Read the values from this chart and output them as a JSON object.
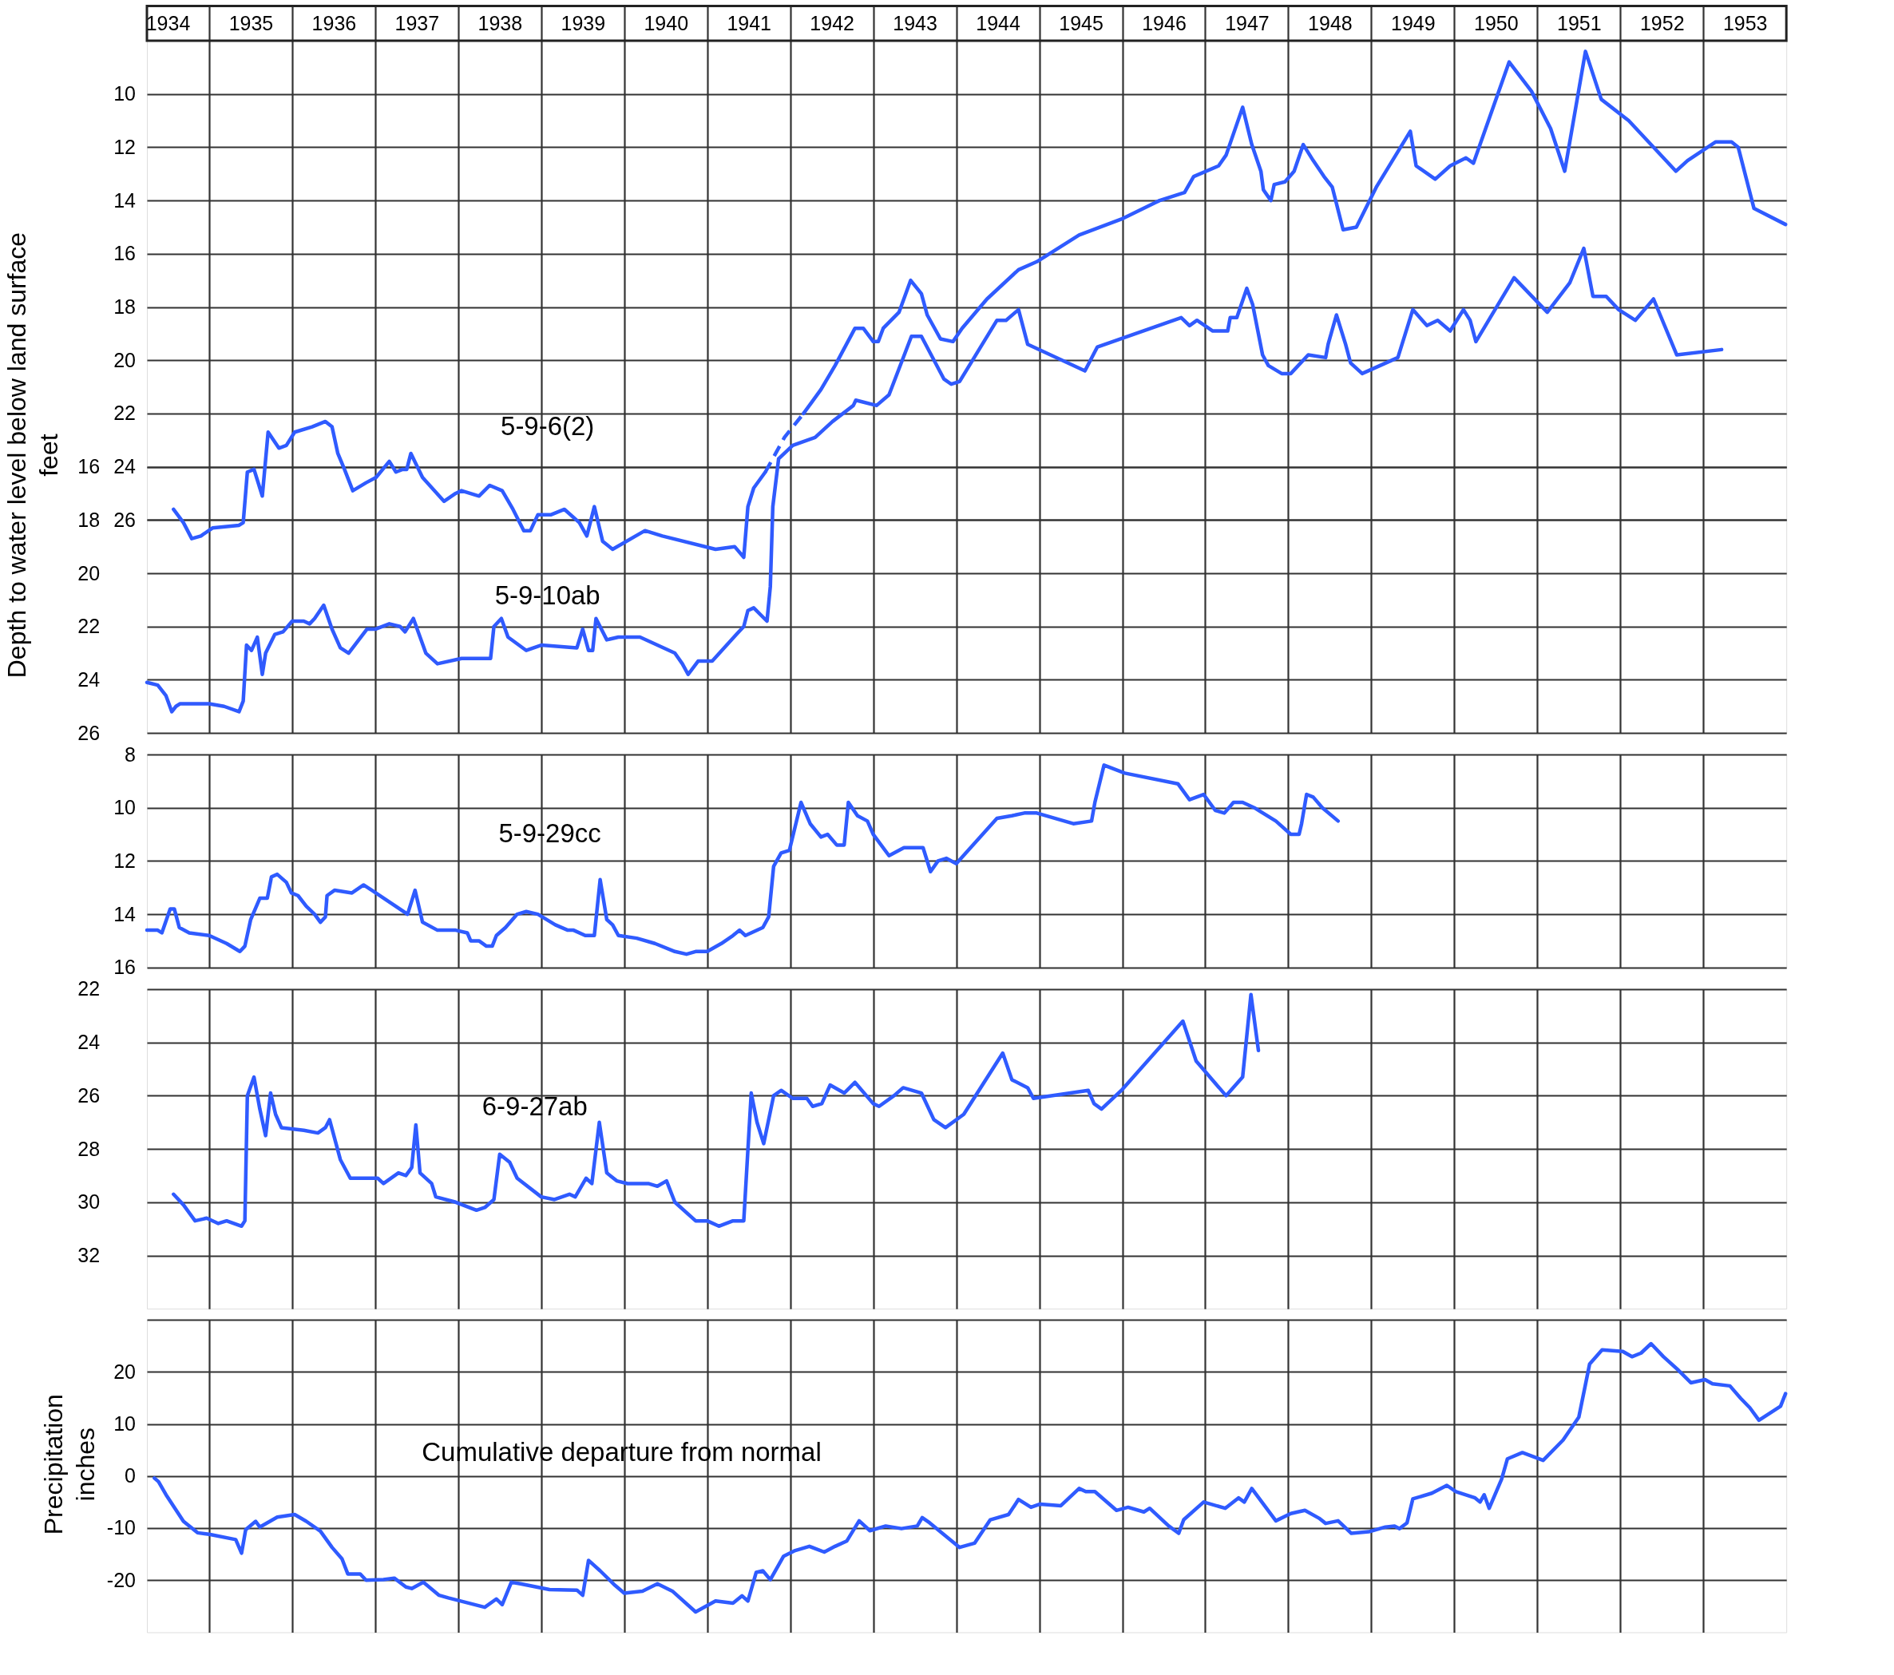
{
  "chart_data": [
    {
      "type": "line",
      "ylabel": "Depth to water level below land surface\nfeet",
      "grid": true,
      "line_style": "solid",
      "xlim": [
        1934.25,
        1954
      ],
      "xticks": [
        {
          "value": 1934.5,
          "label": "1934"
        },
        {
          "value": 1935,
          "label": null
        },
        {
          "value": 1935.5,
          "label": "1935"
        },
        {
          "value": 1936,
          "label": null
        },
        {
          "value": 1936.5,
          "label": "1936"
        },
        {
          "value": 1937,
          "label": null
        },
        {
          "value": 1937.5,
          "label": "1937"
        },
        {
          "value": 1938,
          "label": null
        },
        {
          "value": 1938.5,
          "label": "1938"
        },
        {
          "value": 1939,
          "label": null
        },
        {
          "value": 1939.5,
          "label": "1939"
        },
        {
          "value": 1940,
          "label": null
        },
        {
          "value": 1940.5,
          "label": "1940"
        },
        {
          "value": 1941,
          "label": null
        },
        {
          "value": 1941.5,
          "label": "1941"
        },
        {
          "value": 1942,
          "label": null
        },
        {
          "value": 1942.5,
          "label": "1942"
        },
        {
          "value": 1943,
          "label": null
        },
        {
          "value": 1943.5,
          "label": "1943"
        },
        {
          "value": 1944,
          "label": null
        },
        {
          "value": 1944.5,
          "label": "1944"
        },
        {
          "value": 1945,
          "label": null
        },
        {
          "value": 1945.5,
          "label": "1945"
        },
        {
          "value": 1946,
          "label": null
        },
        {
          "value": 1946.5,
          "label": "1946"
        },
        {
          "value": 1947,
          "label": null
        },
        {
          "value": 1947.5,
          "label": "1947"
        },
        {
          "value": 1948,
          "label": null
        },
        {
          "value": 1948.5,
          "label": "1948"
        },
        {
          "value": 1949,
          "label": null
        },
        {
          "value": 1949.5,
          "label": "1949"
        },
        {
          "value": 1950,
          "label": null
        },
        {
          "value": 1950.5,
          "label": "1950"
        },
        {
          "value": 1951,
          "label": null
        },
        {
          "value": 1951.5,
          "label": "1951"
        },
        {
          "value": 1952,
          "label": null
        },
        {
          "value": 1952.5,
          "label": "1952"
        },
        {
          "value": 1953,
          "label": null
        },
        {
          "value": 1953.5,
          "label": "1953"
        }
      ],
      "y2lim": [
        34,
        8
      ],
      "y2ticks": [
        10,
        12,
        14,
        16,
        18,
        20,
        22,
        24,
        26
      ],
      "ylim": [
        26,
        0
      ],
      "yticks": [
        16,
        18,
        20,
        22,
        24,
        26
      ],
      "series": [
        {
          "name": "5-9-6(2)",
          "color": "#2f5bff",
          "axis": "y2",
          "x": [
            1934.57,
            1934.69,
            1934.79,
            1934.9,
            1935.04,
            1935.36,
            1935.41,
            1935.46,
            1935.54,
            1935.64,
            1935.71,
            1935.84,
            1935.93,
            1936.03,
            1936.24,
            1936.4,
            1936.48,
            1936.55,
            1936.63,
            1936.73,
            1936.89,
            1937.01,
            1937.17,
            1937.25,
            1937.33,
            1937.38,
            1937.43,
            1937.57,
            1937.83,
            1937.97,
            1938.04,
            1938.25,
            1938.38,
            1938.53,
            1938.66,
            1938.79,
            1938.87,
            1938.96,
            1939.12,
            1939.28,
            1939.46,
            1939.55,
            1939.64,
            1939.74,
            1939.86,
            1940.25,
            1940.46,
            1941.1,
            1941.33,
            1941.44,
            1941.49,
            1941.56,
            1941.7,
            1941.93,
            1942.16,
            1942.37,
            1942.54,
            1942.78,
            1942.88,
            1943.0,
            1943.06,
            1943.12,
            1943.31,
            1943.45,
            1943.58,
            1943.65,
            1943.81,
            1943.96,
            1944.07,
            1944.37,
            1944.75,
            1944.97,
            1945.48,
            1945.99,
            1946.45,
            1946.75,
            1946.86,
            1947.16,
            1947.25,
            1947.45,
            1947.56,
            1947.67,
            1947.7,
            1947.79,
            1947.83,
            1947.96,
            1948.07,
            1948.18,
            1948.3,
            1948.43,
            1948.53,
            1948.66,
            1948.82,
            1949.06,
            1949.47,
            1949.54,
            1949.77,
            1949.95,
            1950.14,
            1950.23,
            1950.66,
            1950.93,
            1951.16,
            1951.33,
            1951.58,
            1951.77,
            1952.1,
            1952.67,
            1952.81,
            1953.15,
            1953.34,
            1953.42,
            1953.61,
            1953.99
          ],
          "values": [
            25.6,
            26.1,
            26.7,
            26.6,
            26.3,
            26.2,
            26.1,
            24.2,
            24.1,
            25.1,
            22.7,
            23.3,
            23.2,
            22.7,
            22.5,
            22.3,
            22.5,
            23.5,
            24.1,
            24.9,
            24.6,
            24.4,
            23.8,
            24.2,
            24.1,
            24.1,
            23.5,
            24.4,
            25.3,
            25.0,
            24.9,
            25.1,
            24.7,
            24.9,
            25.6,
            26.4,
            26.4,
            25.8,
            25.8,
            25.6,
            26.1,
            26.6,
            25.5,
            26.8,
            27.1,
            26.4,
            26.6,
            27.1,
            27.0,
            27.4,
            25.5,
            24.8,
            24.2,
            null,
            22.0,
            21.1,
            20.2,
            18.8,
            18.8,
            19.3,
            19.3,
            18.8,
            18.2,
            17.0,
            17.5,
            18.3,
            19.2,
            19.3,
            18.8,
            17.7,
            16.6,
            16.3,
            15.3,
            14.7,
            14.0,
            13.7,
            13.1,
            12.7,
            12.3,
            10.5,
            11.9,
            12.9,
            13.6,
            14.0,
            13.4,
            13.3,
            12.9,
            11.9,
            12.5,
            13.1,
            13.5,
            15.1,
            15.0,
            13.5,
            11.4,
            12.7,
            13.2,
            12.7,
            12.4,
            12.6,
            8.8,
            9.9,
            11.3,
            12.9,
            8.4,
            10.2,
            11.0,
            12.9,
            12.5,
            11.8,
            11.8,
            12.0,
            14.3,
            14.9
          ]
        },
        {
          "color": "#2f5cfe",
          "axis": "y2",
          "line_style": "dashed",
          "x": [
            1941.7,
            1941.93,
            1942.16
          ],
          "values": [
            24.2,
            22.9,
            22.0
          ]
        },
        {
          "name": "5-9-10ab",
          "color": "#305afd",
          "axis": "y",
          "x": [
            1934.25,
            1934.38,
            1934.48,
            1934.55,
            1934.6,
            1934.65,
            1935.0,
            1935.18,
            1935.36,
            1935.41,
            1935.45,
            1935.51,
            1935.58,
            1935.64,
            1935.68,
            1935.79,
            1935.89,
            1936.0,
            1936.14,
            1936.21,
            1936.27,
            1936.38,
            1936.48,
            1936.58,
            1936.68,
            1936.9,
            1937.0,
            1937.17,
            1937.3,
            1937.36,
            1937.46,
            1937.61,
            1937.75,
            1938.04,
            1938.39,
            1938.43,
            1938.52,
            1938.6,
            1938.82,
            1939.0,
            1939.43,
            1939.5,
            1939.57,
            1939.62,
            1939.66,
            1939.79,
            1939.93,
            1940.19,
            1940.61,
            1940.7,
            1940.77,
            1940.89,
            1941.06,
            1941.35,
            1941.44,
            1941.49,
            1941.56,
            1941.72,
            1941.76,
            1941.79,
            1941.86,
            1942.03,
            1942.3,
            1942.51,
            1942.76,
            1942.79,
            1943.04,
            1943.19,
            1943.46,
            1943.58,
            1943.85,
            1943.94,
            1944.04,
            1944.49,
            1944.6,
            1944.75,
            1944.86,
            1945.55,
            1945.7,
            1946.71,
            1946.81,
            1946.9,
            1947.09,
            1947.27,
            1947.3,
            1947.38,
            1947.5,
            1947.57,
            1947.69,
            1947.76,
            1947.92,
            1948.03,
            1948.24,
            1948.45,
            1948.48,
            1948.58,
            1948.69,
            1948.75,
            1948.89,
            1949.32,
            1949.5,
            1949.67,
            1949.8,
            1949.95,
            1950.11,
            1950.19,
            1950.26,
            1950.72,
            1951.12,
            1951.39,
            1951.56,
            1951.67,
            1951.83,
            1951.98,
            1952.18,
            1952.4,
            1952.68,
            1953.22
          ],
          "values": [
            24.1,
            24.2,
            24.6,
            25.2,
            25.0,
            24.9,
            24.9,
            25.0,
            25.2,
            24.8,
            22.7,
            22.9,
            22.4,
            23.8,
            23.0,
            22.3,
            22.2,
            21.8,
            21.8,
            21.9,
            21.7,
            21.2,
            22.1,
            22.8,
            23.0,
            22.1,
            22.1,
            21.9,
            22.0,
            22.2,
            21.7,
            23.0,
            23.4,
            23.2,
            23.2,
            22.0,
            21.7,
            22.4,
            22.9,
            22.7,
            22.8,
            22.1,
            22.9,
            22.9,
            21.7,
            22.5,
            22.4,
            22.4,
            23.0,
            23.4,
            23.8,
            23.3,
            23.3,
            22.3,
            22.0,
            21.4,
            21.3,
            21.8,
            20.5,
            17.5,
            15.7,
            15.2,
            14.9,
            14.3,
            13.7,
            13.5,
            13.7,
            13.3,
            11.1,
            11.1,
            12.7,
            12.9,
            12.8,
            10.5,
            10.5,
            10.1,
            11.4,
            12.4,
            11.5,
            10.4,
            10.7,
            10.5,
            10.9,
            10.9,
            10.4,
            10.4,
            9.3,
            9.9,
            11.8,
            12.2,
            12.5,
            12.5,
            11.8,
            11.9,
            11.4,
            10.3,
            11.4,
            12.1,
            12.5,
            11.9,
            10.1,
            10.7,
            10.5,
            10.9,
            10.1,
            10.5,
            11.3,
            8.9,
            10.2,
            9.1,
            7.8,
            9.6,
            9.6,
            10.1,
            10.5,
            9.7,
            11.8,
            11.6
          ]
        }
      ]
    },
    {
      "type": "line",
      "tick_labels": "y",
      "grid": true,
      "line_style": "solid",
      "xlim": [
        1934.25,
        1954
      ],
      "ylim": [
        16,
        8
      ],
      "yticks": [
        8,
        10,
        12,
        14,
        16
      ],
      "series": [
        {
          "name": "5-9-29cc",
          "color": "#2f5bff",
          "axis": "y",
          "x": [
            1934.25,
            1934.38,
            1934.43,
            1934.53,
            1934.58,
            1934.64,
            1934.76,
            1935.0,
            1935.21,
            1935.37,
            1935.43,
            1935.5,
            1935.61,
            1935.7,
            1935.75,
            1935.82,
            1935.93,
            1935.99,
            1936.07,
            1936.17,
            1936.27,
            1936.34,
            1936.4,
            1936.42,
            1936.51,
            1936.72,
            1936.86,
            1936.96,
            1937.39,
            1937.48,
            1937.57,
            1937.75,
            1937.97,
            1938.11,
            1938.15,
            1938.25,
            1938.34,
            1938.41,
            1938.46,
            1938.57,
            1938.71,
            1938.82,
            1938.96,
            1939.17,
            1939.32,
            1939.39,
            1939.53,
            1939.64,
            1939.71,
            1939.79,
            1939.86,
            1939.93,
            1940.15,
            1940.37,
            1940.61,
            1940.75,
            1940.86,
            1941.0,
            1941.17,
            1941.31,
            1941.39,
            1941.46,
            1941.67,
            1941.74,
            1941.8,
            1941.89,
            1941.99,
            1942.13,
            1942.24,
            1942.37,
            1942.45,
            1942.56,
            1942.65,
            1942.7,
            1942.81,
            1942.93,
            1943.0,
            1943.19,
            1943.37,
            1943.6,
            1943.69,
            1943.78,
            1943.88,
            1944.0,
            1944.49,
            1944.67,
            1944.82,
            1944.97,
            1945.41,
            1945.63,
            1945.67,
            1945.78,
            1946.03,
            1946.67,
            1946.81,
            1946.98,
            1947.12,
            1947.23,
            1947.34,
            1947.45,
            1947.59,
            1947.85,
            1948.03,
            1948.13,
            1948.16,
            1948.22,
            1948.3,
            1948.41,
            1948.6
          ],
          "values": [
            14.6,
            14.6,
            14.7,
            13.8,
            13.8,
            14.5,
            14.7,
            14.8,
            15.1,
            15.4,
            15.2,
            14.2,
            13.4,
            13.4,
            12.6,
            12.5,
            12.8,
            13.2,
            13.3,
            13.7,
            14.0,
            14.3,
            14.1,
            13.3,
            13.1,
            13.2,
            12.9,
            13.1,
            14.0,
            13.1,
            14.3,
            14.6,
            14.6,
            14.7,
            15.0,
            15.0,
            15.2,
            15.2,
            14.8,
            14.5,
            14.0,
            13.9,
            14.0,
            14.4,
            14.6,
            14.6,
            14.8,
            14.8,
            12.7,
            14.2,
            14.4,
            14.8,
            14.9,
            15.1,
            15.4,
            15.5,
            15.4,
            15.4,
            15.1,
            14.8,
            14.6,
            14.8,
            14.5,
            14.1,
            12.2,
            11.7,
            11.6,
            9.8,
            10.6,
            11.1,
            11.0,
            11.4,
            11.4,
            9.8,
            10.3,
            10.5,
            11.0,
            11.8,
            11.5,
            11.5,
            12.4,
            12.0,
            11.9,
            12.1,
            10.4,
            10.3,
            10.2,
            10.2,
            10.6,
            10.5,
            9.8,
            8.4,
            8.7,
            9.1,
            9.7,
            9.5,
            10.1,
            10.2,
            9.8,
            9.8,
            10.0,
            10.5,
            11.0,
            11.0,
            10.6,
            9.5,
            9.6,
            10.0,
            10.5
          ]
        }
      ]
    },
    {
      "type": "line",
      "tick_labels": "y",
      "grid": true,
      "line_style": "solid",
      "xlim": [
        1934.25,
        1954
      ],
      "ylim": [
        34,
        22
      ],
      "yticks": [
        22,
        24,
        26,
        28,
        30,
        32
      ],
      "series": [
        {
          "name": "6-9-27ab",
          "color": "#2f5bff",
          "axis": "y",
          "x": [
            1934.57,
            1934.69,
            1934.83,
            1934.97,
            1935.11,
            1935.21,
            1935.39,
            1935.43,
            1935.46,
            1935.54,
            1935.61,
            1935.68,
            1935.74,
            1935.8,
            1935.87,
            1936.14,
            1936.31,
            1936.4,
            1936.45,
            1936.58,
            1936.7,
            1937.03,
            1937.1,
            1937.28,
            1937.37,
            1937.44,
            1937.49,
            1937.54,
            1937.68,
            1937.73,
            1937.97,
            1938.22,
            1938.32,
            1938.43,
            1938.5,
            1938.62,
            1938.71,
            1939.0,
            1939.16,
            1939.34,
            1939.41,
            1939.54,
            1939.61,
            1939.7,
            1939.79,
            1939.91,
            1940.04,
            1940.29,
            1940.4,
            1940.51,
            1940.61,
            1940.86,
            1941.0,
            1941.14,
            1941.31,
            1941.44,
            1941.53,
            1941.6,
            1941.68,
            1941.8,
            1941.89,
            1942.03,
            1942.2,
            1942.27,
            1942.38,
            1942.48,
            1942.65,
            1942.78,
            1943.0,
            1943.07,
            1943.25,
            1943.36,
            1943.58,
            1943.73,
            1943.87,
            1944.09,
            1944.56,
            1944.67,
            1944.86,
            1944.93,
            1945.59,
            1945.66,
            1945.75,
            1945.99,
            1946.73,
            1946.89,
            1947.25,
            1947.45,
            1947.55,
            1947.64
          ],
          "values": [
            29.7,
            30.1,
            30.7,
            30.6,
            30.8,
            30.7,
            30.9,
            30.7,
            26.0,
            25.3,
            26.5,
            27.5,
            25.9,
            26.7,
            27.2,
            27.3,
            27.4,
            27.2,
            26.9,
            28.4,
            29.1,
            29.1,
            29.3,
            28.9,
            29.0,
            28.7,
            27.1,
            28.9,
            29.3,
            29.8,
            30.0,
            30.3,
            30.2,
            29.9,
            28.2,
            28.5,
            29.1,
            29.8,
            29.9,
            29.7,
            29.8,
            29.1,
            29.3,
            27.0,
            28.9,
            29.2,
            29.3,
            29.3,
            29.4,
            29.2,
            30.0,
            30.7,
            30.7,
            30.9,
            30.7,
            30.7,
            25.9,
            27.0,
            27.8,
            26.0,
            25.8,
            26.1,
            26.1,
            26.4,
            26.3,
            25.6,
            25.9,
            25.5,
            26.3,
            26.4,
            26.0,
            25.7,
            25.9,
            26.9,
            27.2,
            26.7,
            24.4,
            25.4,
            25.7,
            26.1,
            25.8,
            26.3,
            26.5,
            25.8,
            23.2,
            24.7,
            26.0,
            25.3,
            22.2,
            24.3
          ]
        }
      ]
    },
    {
      "type": "line",
      "tick_labels": "y",
      "ylabel": "Precipitation\ninches",
      "grid": true,
      "line_style": "solid",
      "xlim": [
        1934.25,
        1954
      ],
      "ylim": [
        -30,
        30
      ],
      "yticks": [
        {
          "value": 30,
          "label": null
        },
        20,
        10,
        0,
        -10,
        -20
      ],
      "series": [
        {
          "name": "Cumulative departure from normal",
          "color": "#2f5bff",
          "axis": "y",
          "x": [
            1934.34,
            1934.39,
            1934.48,
            1934.69,
            1934.86,
            1935.0,
            1935.32,
            1935.39,
            1935.44,
            1935.56,
            1935.61,
            1935.82,
            1936.03,
            1936.17,
            1936.34,
            1936.48,
            1936.6,
            1936.67,
            1936.82,
            1936.89,
            1937.1,
            1937.23,
            1937.37,
            1937.44,
            1937.58,
            1937.77,
            1937.88,
            1938.32,
            1938.46,
            1938.53,
            1938.64,
            1938.75,
            1939.1,
            1939.43,
            1939.5,
            1939.57,
            1939.71,
            1939.89,
            1940.0,
            1940.22,
            1940.4,
            1940.58,
            1940.86,
            1941.1,
            1941.31,
            1941.42,
            1941.49,
            1941.59,
            1941.67,
            1941.76,
            1941.92,
            1942.06,
            1942.23,
            1942.41,
            1942.54,
            1942.68,
            1942.83,
            1942.96,
            1943.15,
            1943.34,
            1943.53,
            1943.59,
            1943.68,
            1944.04,
            1944.22,
            1944.41,
            1944.63,
            1944.75,
            1944.9,
            1945.01,
            1945.26,
            1945.48,
            1945.56,
            1945.67,
            1945.93,
            1946.07,
            1946.26,
            1946.33,
            1946.56,
            1946.68,
            1946.74,
            1946.98,
            1947.24,
            1947.4,
            1947.47,
            1947.56,
            1947.85,
            1948.03,
            1948.2,
            1948.37,
            1948.45,
            1948.6,
            1948.76,
            1948.97,
            1949.17,
            1949.28,
            1949.34,
            1949.43,
            1949.5,
            1949.73,
            1949.91,
            1950.02,
            1950.25,
            1950.31,
            1950.36,
            1950.42,
            1950.57,
            1950.64,
            1950.82,
            1951.07,
            1951.31,
            1951.5,
            1951.63,
            1951.78,
            1952.03,
            1952.14,
            1952.25,
            1952.37,
            1952.52,
            1952.7,
            1952.85,
            1953.02,
            1953.11,
            1953.32,
            1953.45,
            1953.56,
            1953.67,
            1953.93,
            1953.99
          ],
          "values": [
            -0.4,
            -1.1,
            -3.6,
            -8.7,
            -10.9,
            -11.2,
            -12.2,
            -14.8,
            -10.3,
            -8.7,
            -9.8,
            -7.9,
            -7.4,
            -8.7,
            -10.6,
            -13.7,
            -15.9,
            -18.8,
            -18.8,
            -20.0,
            -19.9,
            -19.6,
            -21.3,
            -21.6,
            -20.4,
            -22.9,
            -23.4,
            -25.2,
            -23.6,
            -24.7,
            -20.4,
            -20.7,
            -21.8,
            -21.9,
            -22.9,
            -16.2,
            -18.2,
            -21.0,
            -22.5,
            -22.1,
            -20.7,
            -22.1,
            -26.1,
            -24.0,
            -24.4,
            -23.0,
            -24.0,
            -18.5,
            -18.2,
            -19.9,
            -15.4,
            -14.3,
            -13.5,
            -14.6,
            -13.5,
            -12.5,
            -8.6,
            -10.5,
            -9.6,
            -10.1,
            -9.6,
            -8.0,
            -9.0,
            -13.7,
            -12.9,
            -8.4,
            -7.4,
            -4.5,
            -6.0,
            -5.4,
            -5.7,
            -2.4,
            -3.0,
            -3.0,
            -6.6,
            -6.0,
            -6.9,
            -6.2,
            -9.6,
            -11.0,
            -8.4,
            -5.0,
            -6.2,
            -4.2,
            -5.0,
            -2.4,
            -8.6,
            -7.2,
            -6.6,
            -8.1,
            -9.1,
            -8.6,
            -11.0,
            -10.7,
            -9.8,
            -9.6,
            -10.1,
            -9.0,
            -4.4,
            -3.3,
            -1.8,
            -3.0,
            -4.2,
            -5.0,
            -3.6,
            -6.2,
            -0.6,
            3.3,
            4.5,
            3.0,
            6.9,
            11.3,
            21.5,
            24.2,
            23.9,
            22.9,
            23.6,
            25.4,
            22.9,
            20.3,
            17.9,
            18.5,
            17.7,
            17.3,
            14.9,
            13.1,
            10.7,
            13.4,
            15.8
          ]
        }
      ]
    }
  ]
}
